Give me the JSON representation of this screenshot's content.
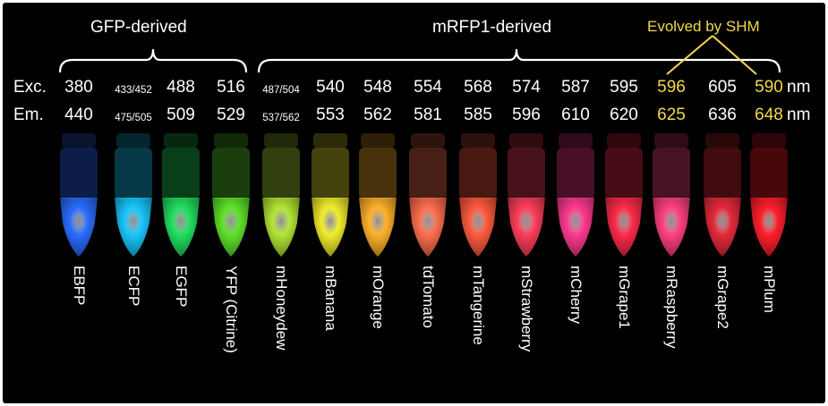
{
  "groups": {
    "gfp_label": "GFP-derived",
    "mrfp_label": "mRFP1-derived",
    "shm_label": "Evolved by SHM"
  },
  "rows": {
    "exc_label": "Exc.",
    "em_label": "Em.",
    "unit": "nm"
  },
  "proteins": [
    {
      "name": "EBFP",
      "exc": "380",
      "em": "440",
      "color": "#2a6dff",
      "small": false,
      "highlight": false
    },
    {
      "name": "ECFP",
      "exc": "433/452",
      "em": "475/505",
      "color": "#18c8ff",
      "small": true,
      "highlight": false
    },
    {
      "name": "EGFP",
      "exc": "488",
      "em": "509",
      "color": "#22e060",
      "small": false,
      "highlight": false
    },
    {
      "name": "YFP (Citrine)",
      "exc": "516",
      "em": "529",
      "color": "#5fe32a",
      "small": false,
      "highlight": false
    },
    {
      "name": "mHoneydew",
      "exc": "487/504",
      "em": "537/562",
      "color": "#b4e636",
      "small": true,
      "highlight": false
    },
    {
      "name": "mBanana",
      "exc": "540",
      "em": "553",
      "color": "#f2ee2c",
      "small": false,
      "highlight": false
    },
    {
      "name": "mOrange",
      "exc": "548",
      "em": "562",
      "color": "#ffb22a",
      "small": false,
      "highlight": false
    },
    {
      "name": "tdTomato",
      "exc": "554",
      "em": "581",
      "color": "#ff6e4e",
      "small": false,
      "highlight": false
    },
    {
      "name": "mTangerine",
      "exc": "568",
      "em": "585",
      "color": "#ff5a3e",
      "small": false,
      "highlight": false
    },
    {
      "name": "mStrawberry",
      "exc": "574",
      "em": "596",
      "color": "#ff3e5a",
      "small": false,
      "highlight": false
    },
    {
      "name": "mCherry",
      "exc": "587",
      "em": "610",
      "color": "#ff3a8e",
      "small": false,
      "highlight": false
    },
    {
      "name": "mGrape1",
      "exc": "595",
      "em": "620",
      "color": "#ff2a4a",
      "small": false,
      "highlight": false
    },
    {
      "name": "mRaspberry",
      "exc": "596",
      "em": "625",
      "color": "#ff4080",
      "small": false,
      "highlight": true
    },
    {
      "name": "mGrape2",
      "exc": "605",
      "em": "636",
      "color": "#e62a3a",
      "small": false,
      "highlight": false
    },
    {
      "name": "mPlum",
      "exc": "590",
      "em": "648",
      "color": "#ff1e2a",
      "small": false,
      "highlight": true
    }
  ]
}
